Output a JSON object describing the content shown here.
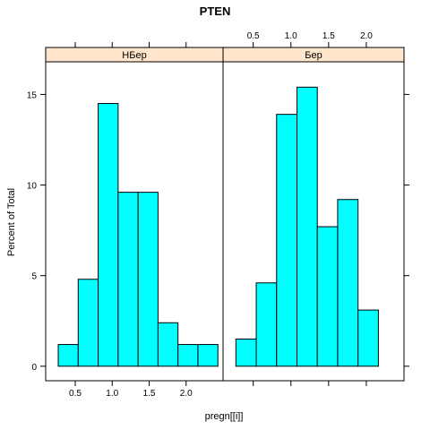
{
  "chart_data": {
    "type": "bar",
    "title": "PTEN",
    "xlabel": "pregn[[i]]",
    "ylabel": "Percent of Total",
    "xlim": [
      0.1,
      2.5
    ],
    "ylim": [
      -0.8,
      16.8
    ],
    "x_ticks": [
      0.5,
      1.0,
      1.5,
      2.0
    ],
    "x_tick_labels": [
      "0.5",
      "1.0",
      "1.5",
      "2.0"
    ],
    "y_ticks": [
      0,
      5,
      10,
      15
    ],
    "y_tick_labels": [
      "0",
      "5",
      "10",
      "15"
    ],
    "bar_color": "#00FFFF",
    "strip_color": "#FFE5CC",
    "panels": [
      {
        "strip_label": "НБер",
        "bins": [
          {
            "x0": 0.27,
            "x1": 0.54,
            "value": 1.2
          },
          {
            "x0": 0.54,
            "x1": 0.81,
            "value": 4.8
          },
          {
            "x0": 0.81,
            "x1": 1.08,
            "value": 14.5
          },
          {
            "x0": 1.08,
            "x1": 1.35,
            "value": 9.6
          },
          {
            "x0": 1.35,
            "x1": 1.62,
            "value": 9.6
          },
          {
            "x0": 1.62,
            "x1": 1.89,
            "value": 2.4
          },
          {
            "x0": 1.89,
            "x1": 2.16,
            "value": 1.2
          },
          {
            "x0": 2.16,
            "x1": 2.43,
            "value": 1.2
          }
        ]
      },
      {
        "strip_label": "Бер",
        "bins": [
          {
            "x0": 0.27,
            "x1": 0.54,
            "value": 1.5
          },
          {
            "x0": 0.54,
            "x1": 0.81,
            "value": 4.6
          },
          {
            "x0": 0.81,
            "x1": 1.08,
            "value": 13.9
          },
          {
            "x0": 1.08,
            "x1": 1.35,
            "value": 15.4
          },
          {
            "x0": 1.35,
            "x1": 1.62,
            "value": 7.7
          },
          {
            "x0": 1.62,
            "x1": 1.89,
            "value": 9.2
          },
          {
            "x0": 1.89,
            "x1": 2.16,
            "value": 3.1
          }
        ]
      }
    ]
  }
}
